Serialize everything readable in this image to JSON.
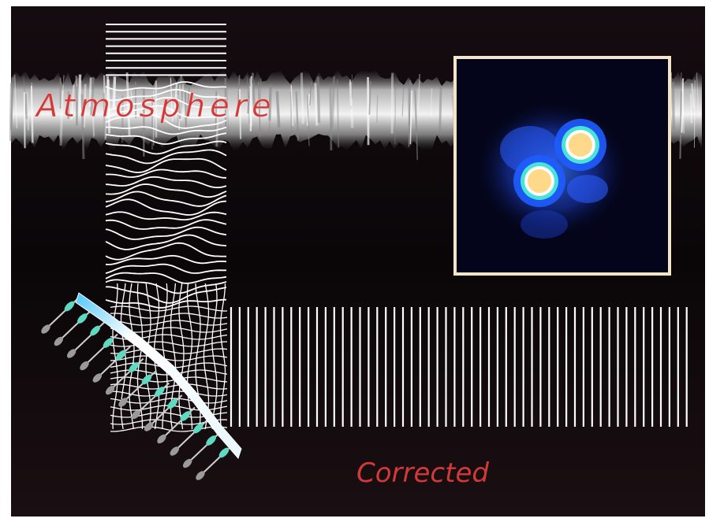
{
  "labels": {
    "atmosphere": "Atmosphere",
    "corrected": "Corrected"
  },
  "colors": {
    "frame_background": "#0a0608",
    "label_red": "#d23a3a",
    "inset_border": "#f3e6c8",
    "inset_background": "#04051a",
    "star_core": "#ffd98a",
    "star_ring": "#46e3d6",
    "star_glow": "#1f5cff",
    "mirror_highlight": "#4fc8ff",
    "actuator_tip": "#5fd9c0",
    "wave_lines": "#ffffff"
  },
  "icons": {
    "atmosphere_band": "turbulence-band-icon",
    "deformable_mirror": "deformable-mirror-icon",
    "binary_star": "binary-star-icon"
  }
}
